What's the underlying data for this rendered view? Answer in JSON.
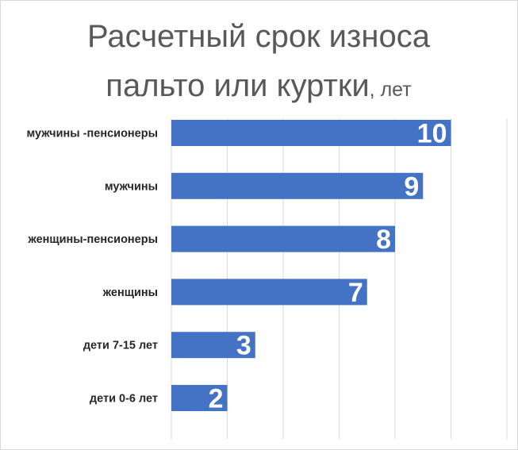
{
  "chart_data": {
    "type": "bar",
    "orientation": "horizontal",
    "title_line1": "Расчетный срок износа",
    "title_line2": "пальто или куртки",
    "title_unit": ", лет",
    "categories": [
      "мужчины -пенсионеры",
      "мужчины",
      "женщины-пенсионеры",
      "женщины",
      "дети 7-15 лет",
      "дети 0-6 лет"
    ],
    "values": [
      10,
      9,
      8,
      7,
      3,
      2
    ],
    "xlim": [
      0,
      12
    ],
    "grid": true,
    "legend": false,
    "bar_color": "#4472C4",
    "label_color": "#FFFFFF",
    "grid_color": "#D9D9D9",
    "title_color": "#595959"
  }
}
